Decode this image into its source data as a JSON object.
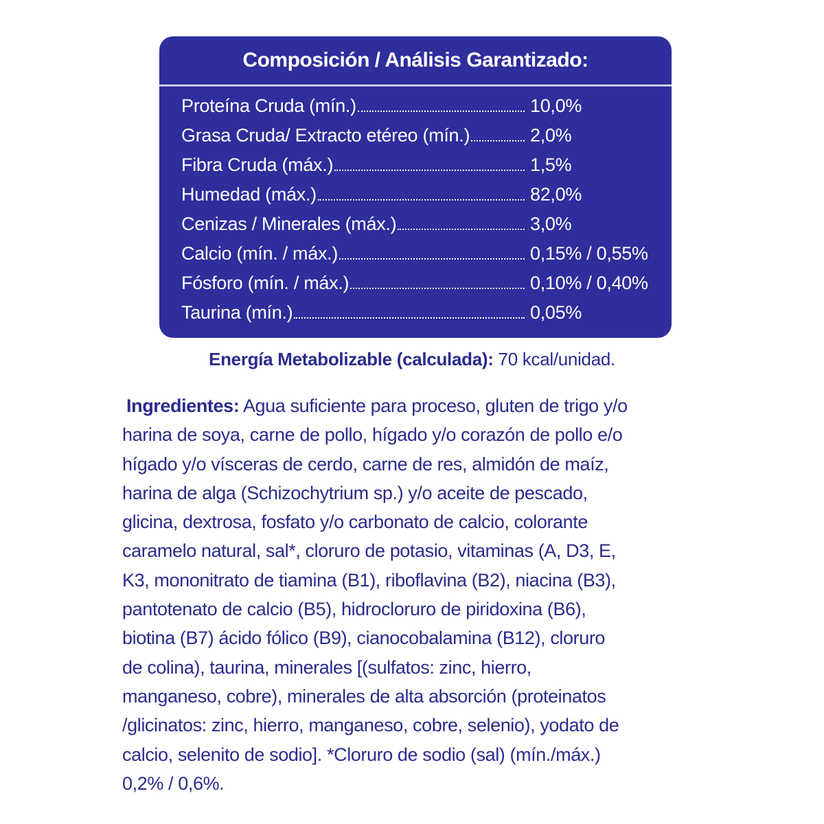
{
  "analysis": {
    "title": "Composición / Análisis Garantizado:",
    "rows": [
      {
        "label": "Proteína Cruda (mín.)",
        "value": "10,0%"
      },
      {
        "label": "Grasa Cruda/ Extracto etéreo (mín.)",
        "value": "2,0%"
      },
      {
        "label": "Fibra Cruda (máx.)",
        "value": "1,5%"
      },
      {
        "label": "Humedad (máx.)",
        "value": "82,0%"
      },
      {
        "label": "Cenizas / Minerales (máx.)",
        "value": "3,0%"
      },
      {
        "label": "Calcio (mín. / máx.)",
        "value": "0,15% / 0,55%"
      },
      {
        "label": "Fósforo (mín. / máx.)",
        "value": "0,10% / 0,40%"
      },
      {
        "label": "Taurina (mín.)",
        "value": "0,05%"
      }
    ]
  },
  "energy": {
    "label": "Energía Metabolizable (calculada):",
    "value": "70 kcal/unidad."
  },
  "ingredients": {
    "label": "Ingredientes:",
    "lines": [
      "Agua suficiente para proceso, gluten de trigo y/o",
      "harina de soya, carne de pollo, hígado y/o corazón de pollo e/o",
      "hígado y/o vísceras de cerdo, carne de res, almidón de maíz,",
      "harina de alga (Schizochytrium sp.) y/o aceite de pescado,",
      "glicina, dextrosa, fosfato y/o carbonato de calcio, colorante",
      "caramelo natural, sal*, cloruro de potasio, vitaminas (A, D3, E,",
      "K3, mononitrato de tiamina (B1), riboflavina (B2), niacina (B3),",
      "pantotenato de calcio (B5), hidrocloruro de piridoxina (B6),",
      "biotina (B7) ácido fólico (B9), cianocobalamina (B12), cloruro",
      "de colina), taurina, minerales [(sulfatos: zinc, hierro,",
      "manganeso, cobre), minerales de alta absorción (proteinatos",
      "/glicinatos: zinc, hierro, manganeso, cobre, selenio), yodato de",
      "calcio, selenito de sodio]. *Cloruro de sodio (sal) (mín./máx.)",
      "0,2% / 0,6%."
    ]
  },
  "colors": {
    "box": "#2e2e9c",
    "text": "#2b2b8c",
    "box_text": "#ffffff"
  }
}
